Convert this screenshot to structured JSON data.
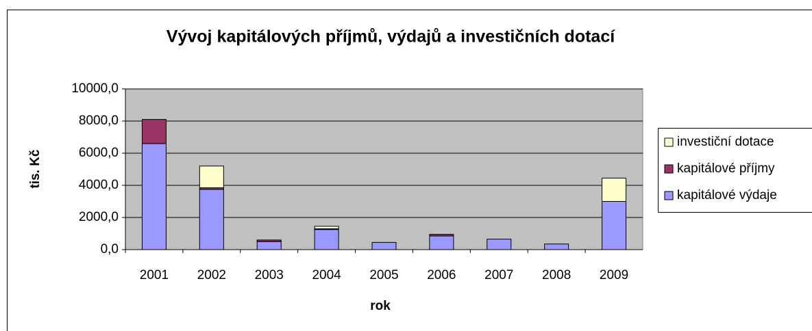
{
  "chart_data": {
    "type": "stacked_bar",
    "title": "Vývoj kapitálových příjmů, výdajů a investičních dotací",
    "x_label": "rok",
    "y_label": "tis. Kč",
    "categories": [
      "2001",
      "2002",
      "2003",
      "2004",
      "2005",
      "2006",
      "2007",
      "2008",
      "2009"
    ],
    "series": [
      {
        "name": "kapitálové výdaje",
        "color": "#9999ff",
        "values": [
          6600,
          3750,
          500,
          1250,
          450,
          850,
          650,
          350,
          3000
        ]
      },
      {
        "name": "kapitálové příjmy",
        "color": "#993366",
        "values": [
          1500,
          100,
          100,
          50,
          0,
          100,
          0,
          0,
          0
        ]
      },
      {
        "name": "investiční dotace",
        "color": "#ffffcc",
        "values": [
          0,
          1350,
          0,
          150,
          0,
          0,
          0,
          0,
          1450
        ]
      }
    ],
    "ylim": [
      0,
      10000
    ],
    "yticks": [
      {
        "value": 0,
        "label": "0,0"
      },
      {
        "value": 2000,
        "label": "2000,0"
      },
      {
        "value": 4000,
        "label": "4000,0"
      },
      {
        "value": 6000,
        "label": "6000,0"
      },
      {
        "value": 8000,
        "label": "8000,0"
      },
      {
        "value": 10000,
        "label": "10000,0"
      }
    ],
    "grid": true,
    "plot_background": "#c0c0c0",
    "legend": "right"
  }
}
